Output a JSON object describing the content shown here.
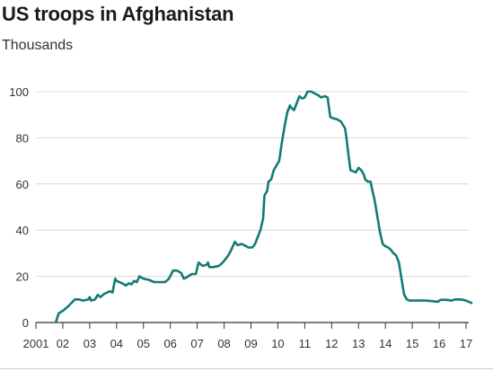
{
  "chart_data": {
    "type": "line",
    "title": "US troops in Afghanistan",
    "subtitle": "Thousands",
    "xlabel": "",
    "ylabel": "",
    "ylim": [
      0,
      100
    ],
    "xlim": [
      2001,
      2017.33
    ],
    "grid": "horizontal",
    "y_ticks": [
      0,
      20,
      40,
      60,
      80,
      100
    ],
    "x_ticks": [
      {
        "value": 2001,
        "label": "2001"
      },
      {
        "value": 2002,
        "label": "02"
      },
      {
        "value": 2003,
        "label": "03"
      },
      {
        "value": 2004,
        "label": "04"
      },
      {
        "value": 2005,
        "label": "05"
      },
      {
        "value": 2006,
        "label": "06"
      },
      {
        "value": 2007,
        "label": "07"
      },
      {
        "value": 2008,
        "label": "08"
      },
      {
        "value": 2009,
        "label": "09"
      },
      {
        "value": 2010,
        "label": "10"
      },
      {
        "value": 2011,
        "label": "11"
      },
      {
        "value": 2012,
        "label": "12"
      },
      {
        "value": 2013,
        "label": "13"
      },
      {
        "value": 2014,
        "label": "14"
      },
      {
        "value": 2015,
        "label": "15"
      },
      {
        "value": 2016,
        "label": "16"
      },
      {
        "value": 2017,
        "label": "17"
      }
    ],
    "colors": {
      "line": "#137b77",
      "grid": "#d9d9d9",
      "axis": "#333333"
    },
    "series": [
      {
        "values": [
          [
            2001.75,
            0.5
          ],
          [
            2001.85,
            4
          ],
          [
            2002.0,
            5
          ],
          [
            2002.2,
            7
          ],
          [
            2002.45,
            10
          ],
          [
            2002.6,
            10
          ],
          [
            2002.75,
            9.5
          ],
          [
            2002.95,
            10
          ],
          [
            2003.0,
            11
          ],
          [
            2003.05,
            9.5
          ],
          [
            2003.2,
            10
          ],
          [
            2003.3,
            12
          ],
          [
            2003.4,
            11
          ],
          [
            2003.55,
            12.5
          ],
          [
            2003.75,
            13.5
          ],
          [
            2003.85,
            13
          ],
          [
            2003.95,
            19
          ],
          [
            2004.0,
            18
          ],
          [
            2004.2,
            17
          ],
          [
            2004.35,
            16
          ],
          [
            2004.45,
            17
          ],
          [
            2004.55,
            16.5
          ],
          [
            2004.65,
            18
          ],
          [
            2004.75,
            17.5
          ],
          [
            2004.85,
            20
          ],
          [
            2005.0,
            19
          ],
          [
            2005.2,
            18.5
          ],
          [
            2005.4,
            17.5
          ],
          [
            2005.6,
            17.5
          ],
          [
            2005.8,
            17.5
          ],
          [
            2005.95,
            19
          ],
          [
            2006.1,
            22.5
          ],
          [
            2006.25,
            22.5
          ],
          [
            2006.4,
            21.5
          ],
          [
            2006.5,
            19
          ],
          [
            2006.6,
            19.5
          ],
          [
            2006.8,
            21
          ],
          [
            2006.95,
            21
          ],
          [
            2007.05,
            26
          ],
          [
            2007.2,
            24.5
          ],
          [
            2007.35,
            25
          ],
          [
            2007.4,
            26
          ],
          [
            2007.45,
            24
          ],
          [
            2007.6,
            24
          ],
          [
            2007.8,
            24.5
          ],
          [
            2007.95,
            26
          ],
          [
            2008.15,
            29
          ],
          [
            2008.25,
            31
          ],
          [
            2008.4,
            35
          ],
          [
            2008.5,
            33.5
          ],
          [
            2008.65,
            34
          ],
          [
            2008.75,
            33.5
          ],
          [
            2008.9,
            32.5
          ],
          [
            2009.05,
            32.5
          ],
          [
            2009.15,
            34
          ],
          [
            2009.25,
            37
          ],
          [
            2009.35,
            40
          ],
          [
            2009.45,
            45
          ],
          [
            2009.5,
            55
          ],
          [
            2009.6,
            57
          ],
          [
            2009.65,
            61
          ],
          [
            2009.75,
            62
          ],
          [
            2009.85,
            66
          ],
          [
            2009.95,
            68
          ],
          [
            2010.05,
            70
          ],
          [
            2010.15,
            78
          ],
          [
            2010.25,
            85
          ],
          [
            2010.35,
            91
          ],
          [
            2010.45,
            94
          ],
          [
            2010.5,
            93
          ],
          [
            2010.6,
            92
          ],
          [
            2010.7,
            95
          ],
          [
            2010.8,
            98
          ],
          [
            2010.9,
            97
          ],
          [
            2011.0,
            97.5
          ],
          [
            2011.1,
            100
          ],
          [
            2011.25,
            100
          ],
          [
            2011.4,
            99
          ],
          [
            2011.5,
            98.5
          ],
          [
            2011.6,
            97.5
          ],
          [
            2011.75,
            98
          ],
          [
            2011.85,
            97.5
          ],
          [
            2011.95,
            89
          ],
          [
            2012.05,
            88.5
          ],
          [
            2012.2,
            88
          ],
          [
            2012.35,
            87
          ],
          [
            2012.5,
            84
          ],
          [
            2012.55,
            80
          ],
          [
            2012.62,
            73
          ],
          [
            2012.7,
            66
          ],
          [
            2012.8,
            65.5
          ],
          [
            2012.9,
            65
          ],
          [
            2013.0,
            67
          ],
          [
            2013.1,
            66
          ],
          [
            2013.2,
            64
          ],
          [
            2013.25,
            62
          ],
          [
            2013.35,
            61
          ],
          [
            2013.45,
            61
          ],
          [
            2013.5,
            58
          ],
          [
            2013.6,
            53
          ],
          [
            2013.7,
            46
          ],
          [
            2013.8,
            39
          ],
          [
            2013.9,
            34
          ],
          [
            2014.0,
            33
          ],
          [
            2014.1,
            32.5
          ],
          [
            2014.2,
            31.5
          ],
          [
            2014.3,
            30
          ],
          [
            2014.4,
            29
          ],
          [
            2014.5,
            26
          ],
          [
            2014.6,
            19
          ],
          [
            2014.7,
            12
          ],
          [
            2014.8,
            10
          ],
          [
            2014.9,
            9.5
          ],
          [
            2015.2,
            9.5
          ],
          [
            2015.5,
            9.5
          ],
          [
            2015.8,
            9.2
          ],
          [
            2015.95,
            9
          ],
          [
            2016.05,
            9.8
          ],
          [
            2016.3,
            9.8
          ],
          [
            2016.45,
            9.5
          ],
          [
            2016.6,
            10
          ],
          [
            2016.75,
            10
          ],
          [
            2016.9,
            9.8
          ],
          [
            2017.0,
            9.5
          ],
          [
            2017.1,
            9
          ],
          [
            2017.2,
            8.5
          ]
        ]
      }
    ]
  }
}
